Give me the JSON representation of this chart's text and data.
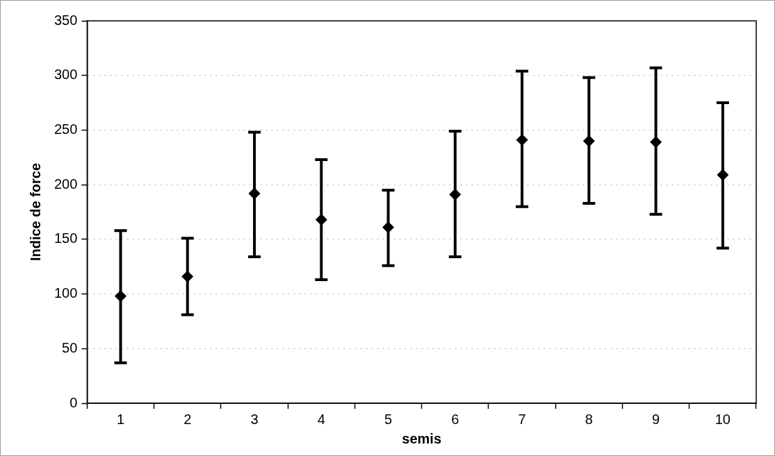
{
  "chart_data": {
    "type": "scatter",
    "xlabel": "semis",
    "ylabel": "Indice de force",
    "categories": [
      "1",
      "2",
      "3",
      "4",
      "5",
      "6",
      "7",
      "8",
      "9",
      "10"
    ],
    "series": [
      {
        "color": "#000000",
        "values": [
          98,
          116,
          192,
          168,
          161,
          191,
          241,
          240,
          239,
          209
        ],
        "errors": [
          [
            37,
            158
          ],
          [
            81,
            151
          ],
          [
            134,
            248
          ],
          [
            113,
            223
          ],
          [
            126,
            195
          ],
          [
            134,
            249
          ],
          [
            180,
            304
          ],
          [
            183,
            298
          ],
          [
            173,
            307
          ],
          [
            142,
            275
          ]
        ]
      }
    ],
    "ylim": [
      0,
      350
    ],
    "yticks": [
      0,
      50,
      100,
      150,
      200,
      250,
      300,
      350
    ],
    "grid": "y",
    "legend": false,
    "marker": "diamond"
  }
}
